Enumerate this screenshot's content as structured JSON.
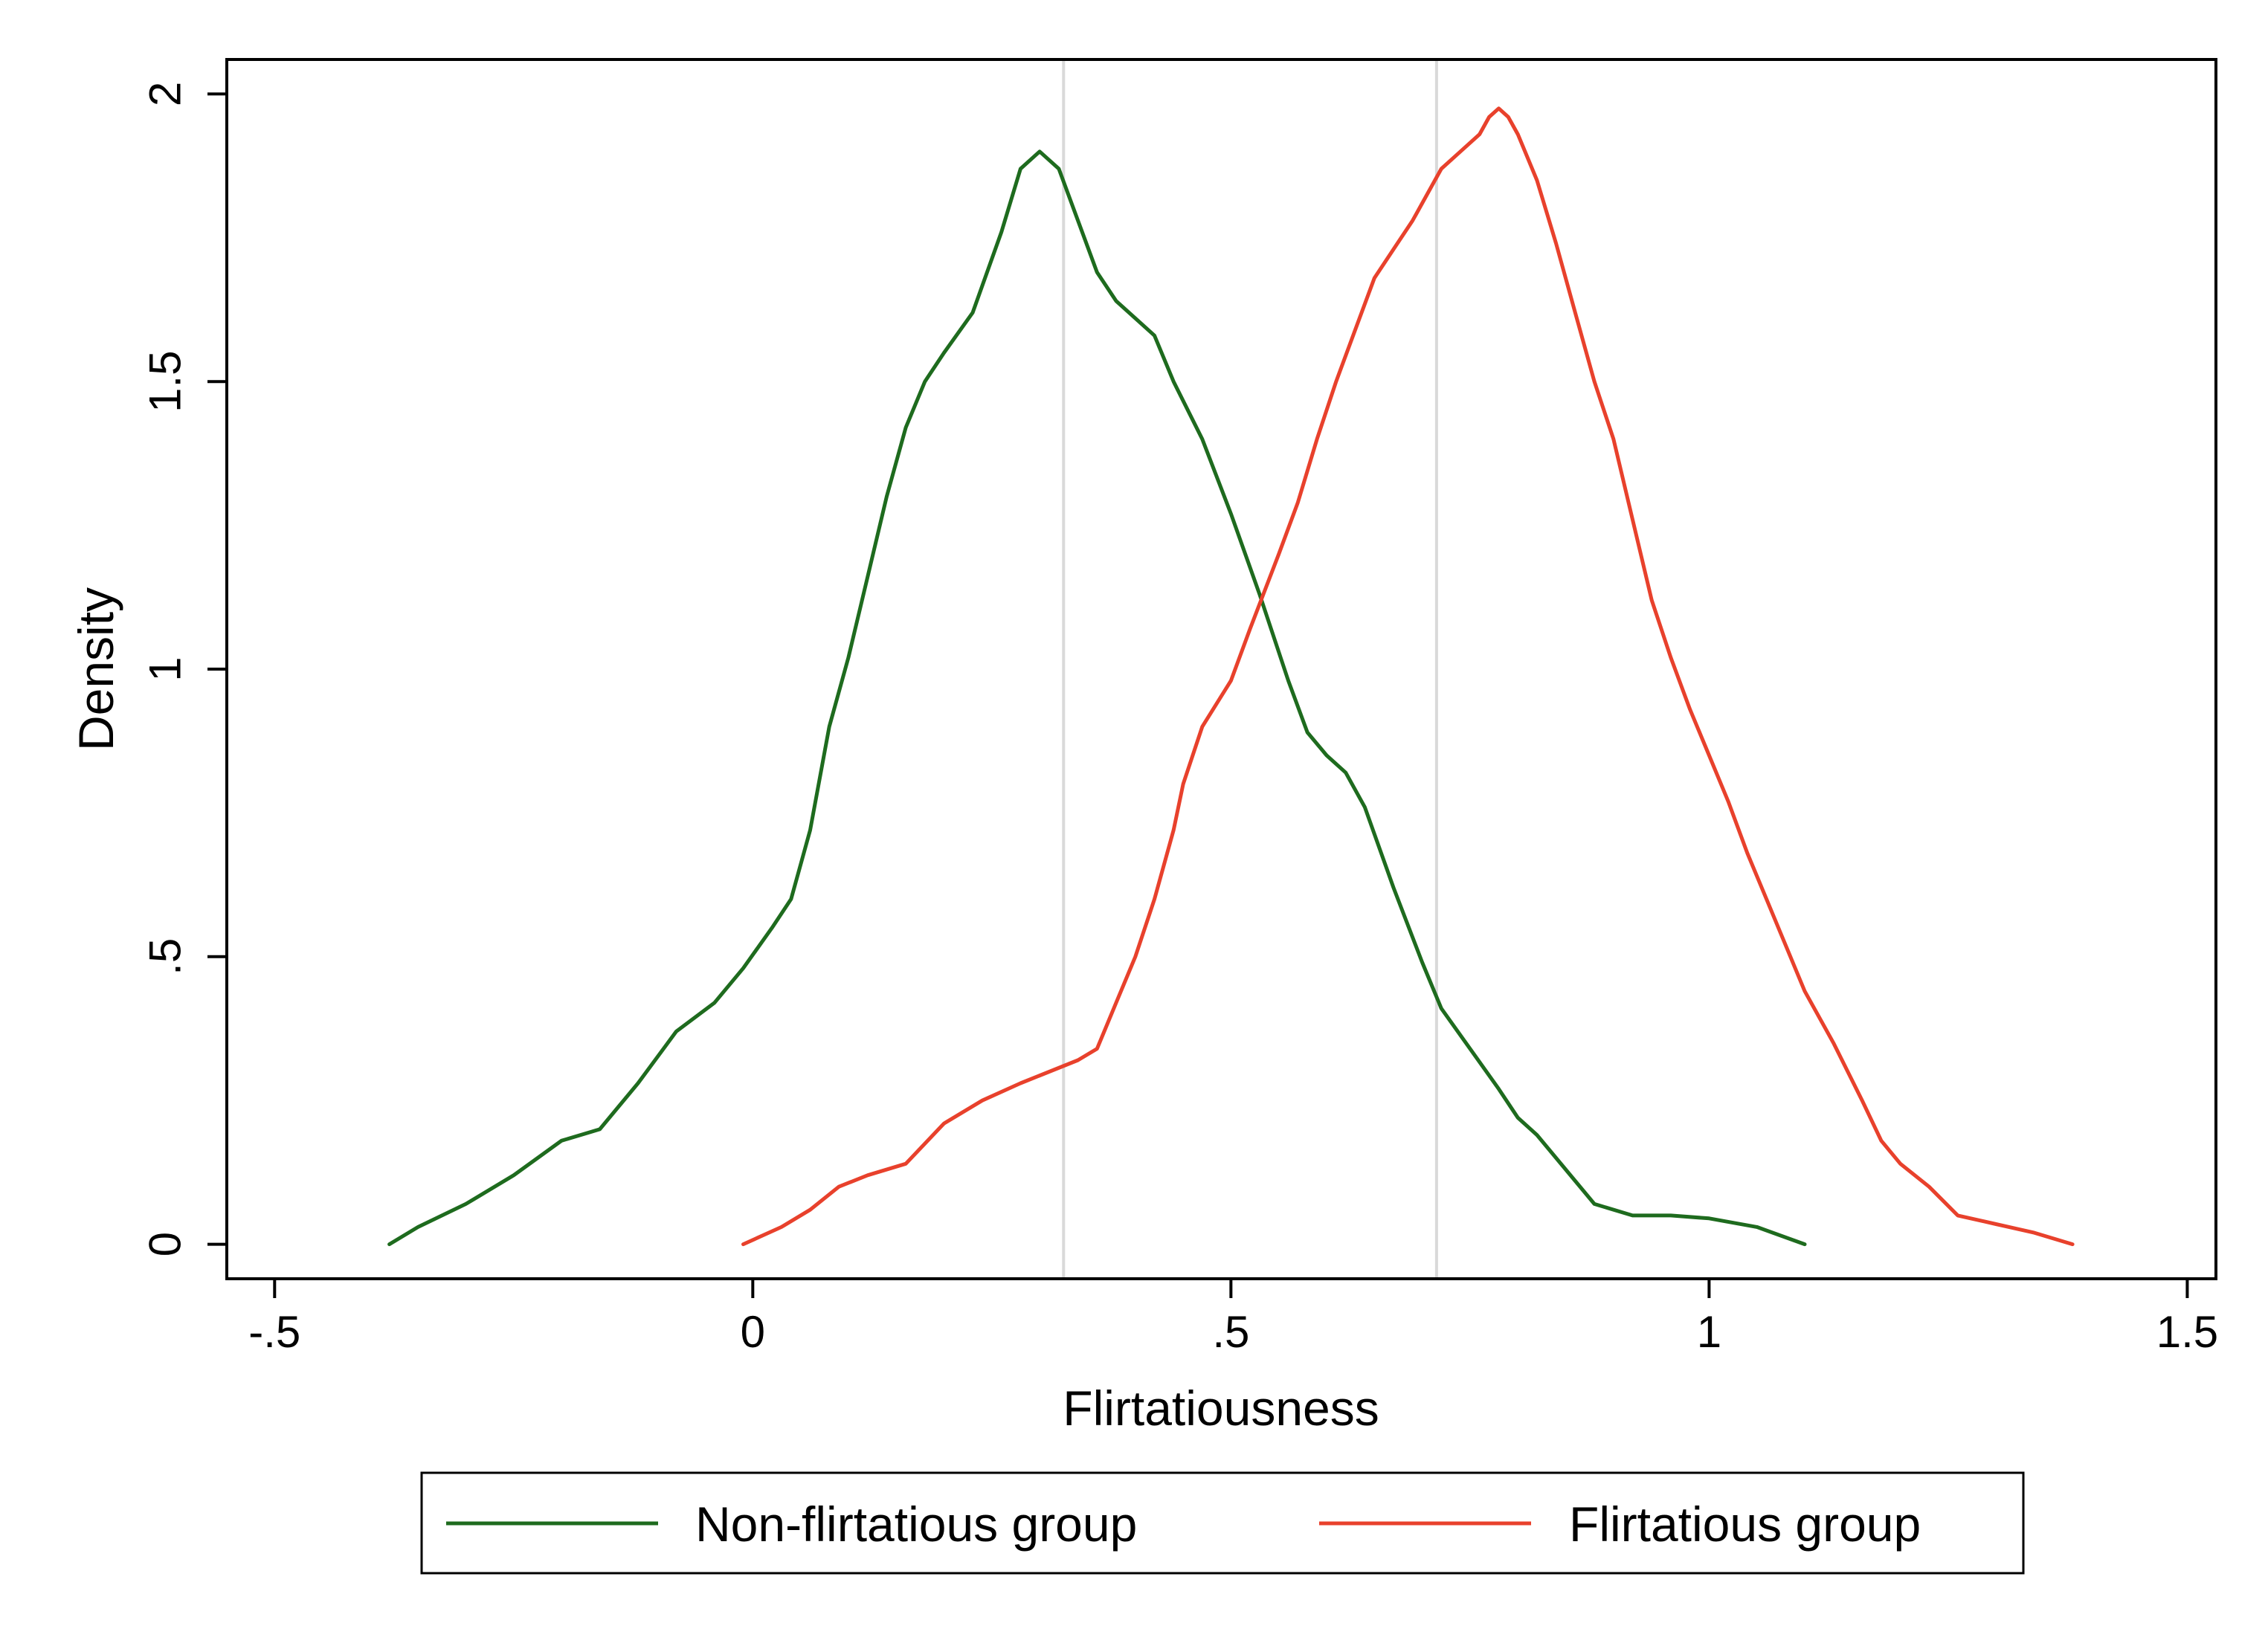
{
  "chart_data": {
    "type": "line",
    "title": "",
    "xlabel": "Flirtatiousness",
    "ylabel": "Density",
    "xlim": [
      -0.55,
      1.53
    ],
    "ylim": [
      -0.06,
      2.06
    ],
    "xticks": [
      {
        "value": -0.5,
        "label": "-.5"
      },
      {
        "value": 0,
        "label": "0"
      },
      {
        "value": 0.5,
        "label": ".5"
      },
      {
        "value": 1,
        "label": "1"
      },
      {
        "value": 1.5,
        "label": "1.5"
      }
    ],
    "yticks": [
      {
        "value": 0,
        "label": "0"
      },
      {
        "value": 0.5,
        "label": ".5"
      },
      {
        "value": 1,
        "label": "1"
      },
      {
        "value": 1.5,
        "label": "1.5"
      },
      {
        "value": 2,
        "label": "2"
      }
    ],
    "grid": false,
    "legend_position": "bottom",
    "reference_lines": {
      "x": [
        0.325,
        0.715
      ],
      "color": "#d9d9d9"
    },
    "series": [
      {
        "name": "Non-flirtatious group",
        "color": "#1e6b1e",
        "points": [
          [
            -0.38,
            0.0
          ],
          [
            -0.35,
            0.03
          ],
          [
            -0.3,
            0.07
          ],
          [
            -0.25,
            0.12
          ],
          [
            -0.2,
            0.18
          ],
          [
            -0.16,
            0.2
          ],
          [
            -0.12,
            0.28
          ],
          [
            -0.08,
            0.37
          ],
          [
            -0.04,
            0.42
          ],
          [
            -0.01,
            0.48
          ],
          [
            0.02,
            0.55
          ],
          [
            0.04,
            0.6
          ],
          [
            0.06,
            0.72
          ],
          [
            0.08,
            0.9
          ],
          [
            0.1,
            1.02
          ],
          [
            0.12,
            1.16
          ],
          [
            0.14,
            1.3
          ],
          [
            0.16,
            1.42
          ],
          [
            0.18,
            1.5
          ],
          [
            0.2,
            1.55
          ],
          [
            0.23,
            1.62
          ],
          [
            0.26,
            1.76
          ],
          [
            0.28,
            1.87
          ],
          [
            0.3,
            1.9
          ],
          [
            0.32,
            1.87
          ],
          [
            0.34,
            1.78
          ],
          [
            0.36,
            1.69
          ],
          [
            0.38,
            1.64
          ],
          [
            0.4,
            1.61
          ],
          [
            0.42,
            1.58
          ],
          [
            0.44,
            1.5
          ],
          [
            0.47,
            1.4
          ],
          [
            0.5,
            1.27
          ],
          [
            0.53,
            1.13
          ],
          [
            0.56,
            0.98
          ],
          [
            0.58,
            0.89
          ],
          [
            0.6,
            0.85
          ],
          [
            0.62,
            0.82
          ],
          [
            0.64,
            0.76
          ],
          [
            0.67,
            0.62
          ],
          [
            0.7,
            0.49
          ],
          [
            0.72,
            0.41
          ],
          [
            0.75,
            0.34
          ],
          [
            0.78,
            0.27
          ],
          [
            0.8,
            0.22
          ],
          [
            0.82,
            0.19
          ],
          [
            0.85,
            0.13
          ],
          [
            0.88,
            0.07
          ],
          [
            0.92,
            0.05
          ],
          [
            0.96,
            0.05
          ],
          [
            1.0,
            0.045
          ],
          [
            1.05,
            0.03
          ],
          [
            1.1,
            0.0
          ]
        ]
      },
      {
        "name": "Flirtatious group",
        "color": "#e8412c",
        "points": [
          [
            -0.01,
            0.0
          ],
          [
            0.03,
            0.03
          ],
          [
            0.06,
            0.06
          ],
          [
            0.09,
            0.1
          ],
          [
            0.12,
            0.12
          ],
          [
            0.16,
            0.14
          ],
          [
            0.2,
            0.21
          ],
          [
            0.24,
            0.25
          ],
          [
            0.28,
            0.28
          ],
          [
            0.31,
            0.3
          ],
          [
            0.34,
            0.32
          ],
          [
            0.36,
            0.34
          ],
          [
            0.38,
            0.42
          ],
          [
            0.4,
            0.5
          ],
          [
            0.42,
            0.6
          ],
          [
            0.44,
            0.72
          ],
          [
            0.45,
            0.8
          ],
          [
            0.47,
            0.9
          ],
          [
            0.5,
            0.98
          ],
          [
            0.52,
            1.07
          ],
          [
            0.55,
            1.2
          ],
          [
            0.57,
            1.29
          ],
          [
            0.59,
            1.4
          ],
          [
            0.61,
            1.5
          ],
          [
            0.63,
            1.59
          ],
          [
            0.65,
            1.68
          ],
          [
            0.67,
            1.73
          ],
          [
            0.69,
            1.78
          ],
          [
            0.71,
            1.84
          ],
          [
            0.72,
            1.87
          ],
          [
            0.74,
            1.9
          ],
          [
            0.76,
            1.93
          ],
          [
            0.77,
            1.96
          ],
          [
            0.78,
            1.975
          ],
          [
            0.79,
            1.96
          ],
          [
            0.8,
            1.93
          ],
          [
            0.82,
            1.85
          ],
          [
            0.84,
            1.74
          ],
          [
            0.86,
            1.62
          ],
          [
            0.88,
            1.5
          ],
          [
            0.9,
            1.4
          ],
          [
            0.92,
            1.26
          ],
          [
            0.94,
            1.12
          ],
          [
            0.96,
            1.02
          ],
          [
            0.98,
            0.93
          ],
          [
            1.0,
            0.85
          ],
          [
            1.02,
            0.77
          ],
          [
            1.04,
            0.68
          ],
          [
            1.06,
            0.6
          ],
          [
            1.08,
            0.52
          ],
          [
            1.1,
            0.44
          ],
          [
            1.13,
            0.35
          ],
          [
            1.16,
            0.25
          ],
          [
            1.18,
            0.18
          ],
          [
            1.2,
            0.14
          ],
          [
            1.23,
            0.1
          ],
          [
            1.26,
            0.05
          ],
          [
            1.3,
            0.035
          ],
          [
            1.34,
            0.02
          ],
          [
            1.38,
            0.0
          ]
        ]
      }
    ]
  }
}
